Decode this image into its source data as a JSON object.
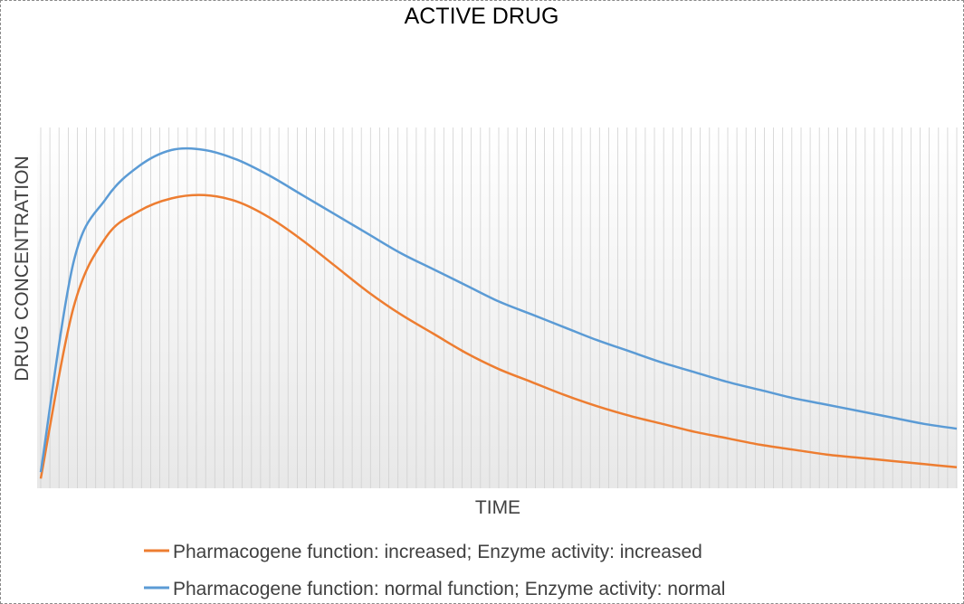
{
  "chart_data": {
    "type": "line",
    "title": "ACTIVE DRUG",
    "xlabel": "TIME",
    "ylabel": "DRUG CONCENTRATION",
    "grid": "vertical",
    "legend_position": "bottom",
    "x_ticks_shown": false,
    "y_ticks_shown": false,
    "series": [
      {
        "name": "Pharmacogene function: increased; Enzyme activity: increased",
        "color": "#ED7D31",
        "values": [
          0.03,
          0.56,
          0.78,
          0.86,
          0.9,
          0.91,
          0.89,
          0.84,
          0.77,
          0.69,
          0.61,
          0.54,
          0.48,
          0.42,
          0.37,
          0.33,
          0.29,
          0.255,
          0.225,
          0.2,
          0.175,
          0.155,
          0.135,
          0.12,
          0.105,
          0.095,
          0.085,
          0.075,
          0.065
        ]
      },
      {
        "name": "Pharmacogene function: normal function; Enzyme activity: normal",
        "color": "#5B9BD5",
        "values": [
          0.05,
          0.7,
          0.9,
          1.0,
          1.05,
          1.05,
          1.02,
          0.97,
          0.91,
          0.85,
          0.79,
          0.73,
          0.68,
          0.63,
          0.58,
          0.54,
          0.5,
          0.46,
          0.425,
          0.39,
          0.36,
          0.33,
          0.305,
          0.28,
          0.26,
          0.24,
          0.22,
          0.2,
          0.185
        ]
      }
    ]
  }
}
